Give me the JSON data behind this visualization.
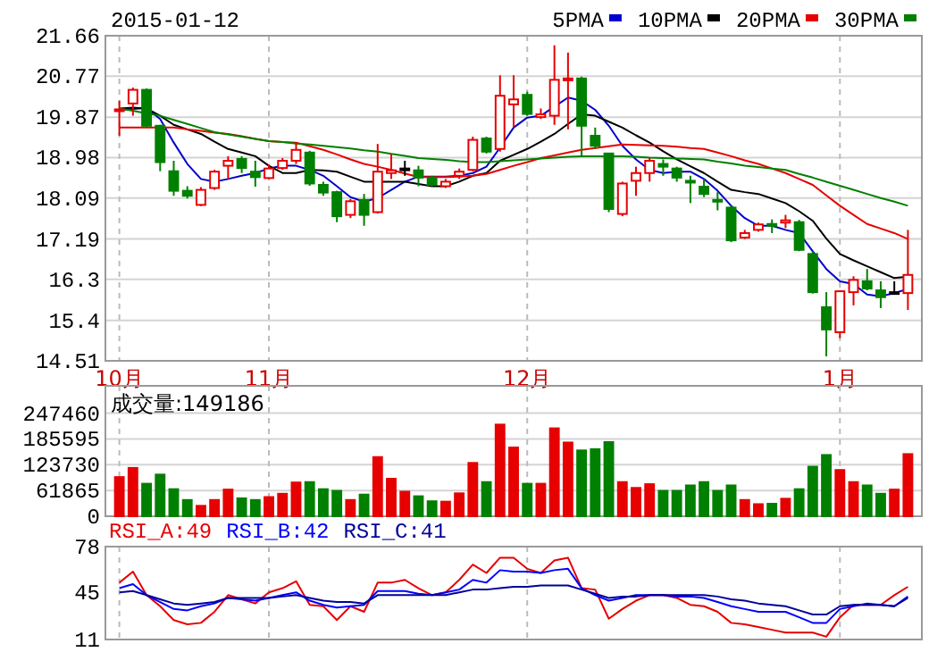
{
  "chart_data": [
    {
      "type": "candlestick",
      "title": "2015-01-12",
      "categories": [
        "10月",
        null,
        null,
        null,
        null,
        null,
        null,
        null,
        null,
        null,
        null,
        "11月",
        null,
        null,
        null,
        null,
        null,
        null,
        null,
        null,
        null,
        null,
        null,
        null,
        null,
        null,
        null,
        null,
        null,
        null,
        "12月",
        null,
        null,
        null,
        null,
        null,
        null,
        null,
        null,
        null,
        null,
        null,
        null,
        null,
        null,
        null,
        null,
        null,
        null,
        null,
        null,
        null,
        null,
        "1月",
        null,
        null,
        null,
        null,
        null
      ],
      "ohlc": [
        [
          20.02,
          20.23,
          19.46,
          20.04
        ],
        [
          20.17,
          20.52,
          19.9,
          20.47
        ],
        [
          20.47,
          20.5,
          19.65,
          19.68
        ],
        [
          19.68,
          19.7,
          18.68,
          18.88
        ],
        [
          18.68,
          18.91,
          18.14,
          18.25
        ],
        [
          18.25,
          18.35,
          18.08,
          18.14
        ],
        [
          17.94,
          18.33,
          17.91,
          18.27
        ],
        [
          18.31,
          18.71,
          18.27,
          18.67
        ],
        [
          18.8,
          19.01,
          18.51,
          18.91
        ],
        [
          18.95,
          19.01,
          18.64,
          18.75
        ],
        [
          18.67,
          18.91,
          18.34,
          18.55
        ],
        [
          18.53,
          18.83,
          18.51,
          18.74
        ],
        [
          18.75,
          18.97,
          18.71,
          18.91
        ],
        [
          18.91,
          19.31,
          18.84,
          19.15
        ],
        [
          19.09,
          19.13,
          18.36,
          18.41
        ],
        [
          18.38,
          18.45,
          18.14,
          18.21
        ],
        [
          18.22,
          18.25,
          17.56,
          17.69
        ],
        [
          17.72,
          18.07,
          17.65,
          18.02
        ],
        [
          18.05,
          18.18,
          17.48,
          17.72
        ],
        [
          17.78,
          19.28,
          17.75,
          18.67
        ],
        [
          18.64,
          19.07,
          18.51,
          18.7
        ],
        [
          18.74,
          18.91,
          18.58,
          18.74
        ],
        [
          18.7,
          18.8,
          18.35,
          18.54
        ],
        [
          18.54,
          18.58,
          18.35,
          18.38
        ],
        [
          18.35,
          18.51,
          18.31,
          18.45
        ],
        [
          18.58,
          18.74,
          18.51,
          18.67
        ],
        [
          18.71,
          19.44,
          18.68,
          19.37
        ],
        [
          19.4,
          19.44,
          19.07,
          19.11
        ],
        [
          19.17,
          20.79,
          19.11,
          20.34
        ],
        [
          20.15,
          20.79,
          19.64,
          20.26
        ],
        [
          20.36,
          20.43,
          19.9,
          19.94
        ],
        [
          19.87,
          20.06,
          19.83,
          19.93
        ],
        [
          19.9,
          21.45,
          19.7,
          20.69
        ],
        [
          20.68,
          21.29,
          19.6,
          20.72
        ],
        [
          20.72,
          20.76,
          19.01,
          19.68
        ],
        [
          19.46,
          19.64,
          19.17,
          19.24
        ],
        [
          19.07,
          19.07,
          17.78,
          17.85
        ],
        [
          17.74,
          18.45,
          17.69,
          18.41
        ],
        [
          18.47,
          18.78,
          18.14,
          18.64
        ],
        [
          18.64,
          18.97,
          18.45,
          18.91
        ],
        [
          18.84,
          18.94,
          18.58,
          18.78
        ],
        [
          18.74,
          18.78,
          18.45,
          18.54
        ],
        [
          18.47,
          18.58,
          17.98,
          18.43
        ],
        [
          18.34,
          18.51,
          18.11,
          18.18
        ],
        [
          18.05,
          18.22,
          17.82,
          18.02
        ],
        [
          17.88,
          17.92,
          17.12,
          17.16
        ],
        [
          17.22,
          17.39,
          17.19,
          17.32
        ],
        [
          17.39,
          17.55,
          17.35,
          17.51
        ],
        [
          17.52,
          17.62,
          17.32,
          17.48
        ],
        [
          17.55,
          17.72,
          17.43,
          17.6
        ],
        [
          17.56,
          17.61,
          16.92,
          16.95
        ],
        [
          16.86,
          16.92,
          15.99,
          16.02
        ],
        [
          15.69,
          16.02,
          14.61,
          15.2
        ],
        [
          15.14,
          16.06,
          15.01,
          16.04
        ],
        [
          16.02,
          16.37,
          15.73,
          16.29
        ],
        [
          16.26,
          16.53,
          16.06,
          16.1
        ],
        [
          16.06,
          16.26,
          15.67,
          15.91
        ],
        [
          16.02,
          16.26,
          15.97,
          16.02
        ],
        [
          16.0,
          17.39,
          15.63,
          16.4
        ]
      ],
      "colors": [
        "#e60000",
        "#e60000",
        "#008000",
        "#008000",
        "#008000",
        "#008000",
        "#e60000",
        "#e60000",
        "#e60000",
        "#008000",
        "#008000",
        "#e60000",
        "#e60000",
        "#e60000",
        "#008000",
        "#008000",
        "#008000",
        "#e60000",
        "#008000",
        "#e60000",
        "#e60000",
        "#000000",
        "#008000",
        "#008000",
        "#e60000",
        "#e60000",
        "#e60000",
        "#008000",
        "#e60000",
        "#e60000",
        "#008000",
        "#e60000",
        "#e60000",
        "#e60000",
        "#008000",
        "#008000",
        "#008000",
        "#e60000",
        "#e60000",
        "#e60000",
        "#008000",
        "#008000",
        "#008000",
        "#008000",
        "#008000",
        "#008000",
        "#e60000",
        "#e60000",
        "#008000",
        "#e60000",
        "#008000",
        "#008000",
        "#008000",
        "#e60000",
        "#e60000",
        "#008000",
        "#008000",
        "#000000",
        "#e60000"
      ],
      "series": [
        {
          "name": "5PMA",
          "type": "line",
          "color": "#0000cc",
          "values": [
            20.03,
            20.05,
            20.07,
            19.83,
            19.31,
            18.84,
            18.51,
            18.45,
            18.51,
            18.58,
            18.64,
            18.74,
            18.8,
            18.8,
            18.71,
            18.58,
            18.35,
            18.11,
            18.01,
            18.09,
            18.27,
            18.45,
            18.56,
            18.56,
            18.56,
            18.58,
            18.64,
            18.78,
            19.2,
            19.64,
            19.86,
            19.9,
            20.1,
            20.3,
            20.23,
            20.03,
            19.68,
            19.24,
            18.94,
            18.71,
            18.64,
            18.67,
            18.67,
            18.51,
            18.25,
            17.92,
            17.65,
            17.48,
            17.48,
            17.39,
            17.32,
            16.92,
            16.53,
            16.26,
            16.2,
            15.97,
            15.93,
            16.0,
            16.09
          ]
        },
        {
          "name": "10PMA",
          "type": "line",
          "color": "#000000",
          "values": [
            20.06,
            20.08,
            20.06,
            19.9,
            19.7,
            19.6,
            19.5,
            19.33,
            19.17,
            19.09,
            19.01,
            18.8,
            18.64,
            18.64,
            18.71,
            18.7,
            18.67,
            18.56,
            18.45,
            18.45,
            18.45,
            18.45,
            18.4,
            18.35,
            18.35,
            18.45,
            18.58,
            18.64,
            18.91,
            19.04,
            19.17,
            19.33,
            19.5,
            19.72,
            19.93,
            19.9,
            19.77,
            19.64,
            19.47,
            19.31,
            19.12,
            18.94,
            18.79,
            18.64,
            18.45,
            18.27,
            18.22,
            18.18,
            18.08,
            17.98,
            17.8,
            17.59,
            17.2,
            16.86,
            16.72,
            16.59,
            16.46,
            16.33,
            16.36
          ]
        },
        {
          "name": "20PMA",
          "type": "line",
          "color": "#e60000",
          "values": [
            19.64,
            19.64,
            19.64,
            19.64,
            19.64,
            19.6,
            19.57,
            19.53,
            19.5,
            19.45,
            19.39,
            19.34,
            19.32,
            19.31,
            19.23,
            19.15,
            19.05,
            18.94,
            18.84,
            18.78,
            18.71,
            18.63,
            18.55,
            18.55,
            18.55,
            18.56,
            18.58,
            18.62,
            18.71,
            18.8,
            18.88,
            18.97,
            19.03,
            19.09,
            19.15,
            19.19,
            19.23,
            19.27,
            19.26,
            19.25,
            19.24,
            19.22,
            19.19,
            19.17,
            19.09,
            19.01,
            18.92,
            18.84,
            18.74,
            18.64,
            18.51,
            18.38,
            18.15,
            17.92,
            17.72,
            17.52,
            17.42,
            17.32,
            17.19
          ]
        },
        {
          "name": "30PMA",
          "type": "line",
          "color": "#008000",
          "values": [
            20.06,
            20.01,
            19.95,
            19.9,
            19.81,
            19.72,
            19.63,
            19.54,
            19.49,
            19.44,
            19.39,
            19.34,
            19.32,
            19.29,
            19.27,
            19.24,
            19.21,
            19.18,
            19.14,
            19.11,
            19.06,
            19.02,
            18.97,
            18.95,
            18.93,
            18.9,
            18.88,
            18.88,
            18.9,
            18.92,
            18.94,
            18.96,
            18.98,
            19.0,
            19.01,
            19.01,
            19.01,
            19.01,
            19.0,
            18.98,
            18.97,
            18.96,
            18.95,
            18.94,
            18.89,
            18.85,
            18.8,
            18.77,
            18.74,
            18.71,
            18.62,
            18.54,
            18.45,
            18.36,
            18.27,
            18.18,
            18.09,
            18.01,
            17.92
          ]
        }
      ],
      "ylim": [
        14.51,
        21.66
      ],
      "yticks": [
        14.51,
        15.4,
        16.3,
        17.19,
        18.09,
        18.98,
        19.87,
        20.77,
        21.66
      ],
      "grid": true,
      "legend": "top right"
    },
    {
      "type": "bar",
      "annotations": [
        "成交量:149186"
      ],
      "categories": [
        null,
        null,
        null,
        null,
        null,
        null,
        null,
        null,
        null,
        null,
        null,
        null,
        null,
        null,
        null,
        null,
        null,
        null,
        null,
        null,
        null,
        null,
        null,
        null,
        null,
        null,
        null,
        null,
        null,
        null,
        null,
        null,
        null,
        null,
        null,
        null,
        null,
        null,
        null,
        null,
        null,
        null,
        null,
        null,
        null,
        null,
        null,
        null,
        null,
        null,
        null,
        null,
        null,
        null,
        null,
        null,
        null,
        null,
        null
      ],
      "values": [
        94000,
        116000,
        78000,
        100000,
        65000,
        39000,
        25000,
        39000,
        64000,
        43000,
        39000,
        46000,
        54000,
        81000,
        82000,
        65000,
        61000,
        39000,
        52000,
        142000,
        90000,
        59000,
        48000,
        36000,
        35000,
        55000,
        128000,
        82000,
        220000,
        165000,
        78000,
        78000,
        211000,
        177000,
        158000,
        161000,
        178000,
        82000,
        68000,
        77000,
        61000,
        61000,
        74000,
        82000,
        61000,
        74000,
        39000,
        29000,
        30000,
        42000,
        65000,
        119000,
        147000,
        111000,
        82000,
        74000,
        54000,
        64000,
        149186
      ],
      "colors": [
        "#e60000",
        "#e60000",
        "#008000",
        "#008000",
        "#008000",
        "#008000",
        "#e60000",
        "#e60000",
        "#e60000",
        "#008000",
        "#008000",
        "#e60000",
        "#e60000",
        "#e60000",
        "#008000",
        "#008000",
        "#008000",
        "#e60000",
        "#008000",
        "#e60000",
        "#e60000",
        "#e60000",
        "#008000",
        "#008000",
        "#e60000",
        "#e60000",
        "#e60000",
        "#008000",
        "#e60000",
        "#e60000",
        "#008000",
        "#e60000",
        "#e60000",
        "#e60000",
        "#008000",
        "#008000",
        "#008000",
        "#e60000",
        "#e60000",
        "#e60000",
        "#008000",
        "#008000",
        "#008000",
        "#008000",
        "#008000",
        "#008000",
        "#e60000",
        "#e60000",
        "#008000",
        "#e60000",
        "#008000",
        "#008000",
        "#008000",
        "#e60000",
        "#e60000",
        "#008000",
        "#008000",
        "#e60000",
        "#e60000"
      ],
      "ylim": [
        0,
        313000
      ],
      "yticks": [
        0,
        61865,
        123730,
        185595,
        247460
      ],
      "grid": true,
      "tick_labels": "y"
    },
    {
      "type": "line",
      "categories": [
        null,
        null,
        null,
        null,
        null,
        null,
        null,
        null,
        null,
        null,
        null,
        null,
        null,
        null,
        null,
        null,
        null,
        null,
        null,
        null,
        null,
        null,
        null,
        null,
        null,
        null,
        null,
        null,
        null,
        null,
        null,
        null,
        null,
        null,
        null,
        null,
        null,
        null,
        null,
        null,
        null,
        null,
        null,
        null,
        null,
        null,
        null,
        null,
        null,
        null,
        null,
        null,
        null,
        null,
        null,
        null,
        null,
        null,
        null
      ],
      "series": [
        {
          "name": "RSI_A:49",
          "color": "#e60000",
          "values": [
            52,
            60,
            43,
            35,
            25,
            22,
            23,
            31,
            43,
            40,
            37,
            45,
            48,
            53,
            36,
            35,
            25,
            35,
            31,
            52,
            52,
            54,
            48,
            43,
            45,
            54,
            65,
            59,
            70,
            70,
            62,
            59,
            68,
            70,
            48,
            47,
            26,
            33,
            39,
            43,
            43,
            41,
            36,
            35,
            31,
            23,
            22,
            20,
            18,
            16,
            16,
            16,
            13,
            27,
            36,
            36,
            36,
            43,
            49
          ]
        },
        {
          "name": "RSI_B:42",
          "color": "#0000ff",
          "values": [
            48,
            51,
            43,
            38,
            33,
            32,
            35,
            37,
            41,
            40,
            39,
            41,
            43,
            45,
            39,
            36,
            34,
            35,
            36,
            46,
            46,
            46,
            44,
            43,
            45,
            47,
            54,
            52,
            61,
            60,
            60,
            59,
            61,
            62,
            48,
            43,
            39,
            41,
            43,
            43,
            43,
            42,
            42,
            41,
            38,
            35,
            33,
            31,
            31,
            31,
            27,
            23,
            23,
            33,
            35,
            37,
            36,
            35,
            42
          ]
        },
        {
          "name": "RSI_C:41",
          "color": "#000099",
          "values": [
            45,
            46,
            43,
            40,
            37,
            36,
            37,
            38,
            41,
            41,
            41,
            41,
            42,
            43,
            41,
            39,
            38,
            38,
            37,
            43,
            43,
            43,
            43,
            43,
            43,
            45,
            47,
            47,
            48,
            49,
            49,
            50,
            50,
            50,
            47,
            44,
            41,
            42,
            42,
            43,
            43,
            43,
            43,
            43,
            42,
            40,
            39,
            37,
            36,
            35,
            32,
            29,
            29,
            35,
            36,
            36,
            36,
            35,
            41
          ]
        }
      ],
      "ylim": [
        11,
        78
      ],
      "yticks": [
        11,
        45,
        78
      ],
      "grid": "x",
      "tick_labels": "y",
      "legend": "top left"
    }
  ]
}
